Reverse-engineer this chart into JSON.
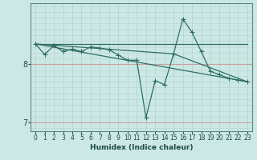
{
  "xlabel": "Humidex (Indice chaleur)",
  "background_color": "#cce8e4",
  "line_color": "#2d6e65",
  "grid_color_v": "#b8d8d4",
  "grid_color_h": "#c8a0a0",
  "xlim": [
    -0.5,
    23.5
  ],
  "ylim": [
    6.85,
    9.05
  ],
  "yticks": [
    7,
    8
  ],
  "xticks": [
    0,
    1,
    2,
    3,
    4,
    5,
    6,
    7,
    8,
    9,
    10,
    11,
    12,
    13,
    14,
    15,
    16,
    17,
    18,
    19,
    20,
    21,
    22,
    23
  ],
  "main_series": {
    "x": [
      0,
      1,
      2,
      3,
      4,
      5,
      6,
      7,
      8,
      9,
      10,
      11,
      12,
      13,
      14,
      15,
      16,
      17,
      18,
      19,
      20,
      21,
      22,
      23
    ],
    "y": [
      8.35,
      8.17,
      8.32,
      8.22,
      8.26,
      8.22,
      8.3,
      8.28,
      8.25,
      8.16,
      8.07,
      8.07,
      7.08,
      7.72,
      7.65,
      8.18,
      8.78,
      8.55,
      8.22,
      7.88,
      7.82,
      7.76,
      7.73,
      7.7
    ]
  },
  "trend_lines": [
    {
      "x": [
        0,
        23
      ],
      "y": [
        8.35,
        8.35
      ]
    },
    {
      "x": [
        0,
        23
      ],
      "y": [
        8.35,
        7.7
      ]
    },
    {
      "x": [
        0,
        15,
        23
      ],
      "y": [
        8.35,
        8.18,
        7.7
      ]
    }
  ],
  "marker": "+",
  "markersize": 4,
  "linewidth": 0.9
}
